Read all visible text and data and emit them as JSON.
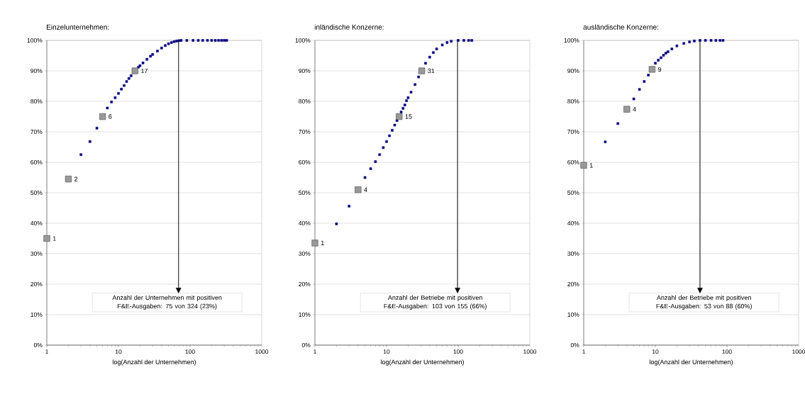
{
  "chart_data": [
    {
      "type": "scatter",
      "title": "Einzelunternehmen:",
      "xlabel": "log(Anzahl der Unternehmen)",
      "log": "x",
      "grid": "y",
      "marker": "square",
      "xlim": [
        1,
        1000
      ],
      "ylim": [
        0,
        100
      ],
      "xticks": [
        1,
        10,
        100,
        1000
      ],
      "yticks": [
        {
          "value": 0,
          "label": "0%"
        },
        {
          "value": 10,
          "label": "10%"
        },
        {
          "value": 20,
          "label": "20%"
        },
        {
          "value": 30,
          "label": "30%"
        },
        {
          "value": 40,
          "label": "40%"
        },
        {
          "value": 50,
          "label": "50%"
        },
        {
          "value": 60,
          "label": "60%"
        },
        {
          "value": 70,
          "label": "70%"
        },
        {
          "value": 80,
          "label": "80%"
        },
        {
          "value": 90,
          "label": "90%"
        },
        {
          "value": 100,
          "label": "100%"
        }
      ],
      "series": [
        {
          "color": "#000080",
          "x": [
            3,
            4,
            5,
            7,
            8,
            9,
            10,
            11,
            12,
            13,
            14,
            15,
            16,
            18,
            19,
            20,
            22,
            25,
            28,
            30,
            35,
            40,
            45,
            50,
            55,
            60,
            65,
            70,
            75,
            90,
            110,
            130,
            150,
            175,
            200,
            225,
            250,
            275,
            300,
            324
          ],
          "values": [
            62.5,
            66.8,
            71.2,
            77.8,
            79.8,
            81.2,
            82.6,
            84,
            85.2,
            86.5,
            87.5,
            88.4,
            null,
            null,
            91.2,
            91.7,
            92.6,
            93.8,
            94.8,
            95.4,
            96.5,
            97.5,
            98.3,
            98.9,
            99.3,
            99.6,
            99.8,
            99.9,
            100,
            100,
            100,
            100,
            100,
            100,
            100,
            100,
            100,
            100,
            100,
            100
          ]
        },
        {
          "color": "#999999",
          "x": [
            1,
            2,
            6,
            17
          ],
          "values": [
            35,
            54.5,
            75,
            90
          ]
        }
      ],
      "ref_lines": [
        {
          "axis": "x",
          "value": 69
        }
      ],
      "annotations": [
        "Anzahl der Unternehmen mit positiven F&E-Ausgaben: 75 von 324 (23%)",
        {
          "text": "1",
          "x": 1,
          "y": 35
        },
        {
          "text": "2",
          "x": 2,
          "y": 54.5
        },
        {
          "text": "6",
          "x": 6,
          "y": 75
        },
        {
          "text": "17",
          "x": 17,
          "y": 90
        }
      ]
    },
    {
      "type": "scatter",
      "title": "inländische Konzerne:",
      "xlabel": "log(Anzahl der Unternehmen)",
      "log": "x",
      "grid": "y",
      "marker": "square",
      "xlim": [
        1,
        1000
      ],
      "ylim": [
        0,
        100
      ],
      "xticks": [
        1,
        10,
        100,
        1000
      ],
      "yticks": [
        {
          "value": 0,
          "label": "0%"
        },
        {
          "value": 10,
          "label": "10%"
        },
        {
          "value": 20,
          "label": "20%"
        },
        {
          "value": 30,
          "label": "30%"
        },
        {
          "value": 40,
          "label": "40%"
        },
        {
          "value": 50,
          "label": "50%"
        },
        {
          "value": 60,
          "label": "60%"
        },
        {
          "value": 70,
          "label": "70%"
        },
        {
          "value": 80,
          "label": "80%"
        },
        {
          "value": 90,
          "label": "90%"
        },
        {
          "value": 100,
          "label": "100%"
        }
      ],
      "series": [
        {
          "color": "#000080",
          "x": [
            2,
            3,
            5,
            6,
            7,
            8,
            9,
            10,
            11,
            12,
            13,
            14,
            16,
            17,
            18,
            19,
            20,
            22,
            25,
            28,
            35,
            40,
            45,
            50,
            60,
            70,
            80,
            100,
            120,
            140,
            155
          ],
          "values": [
            39.8,
            45.6,
            55,
            57.9,
            60.2,
            62.5,
            64.8,
            66.8,
            68.7,
            70.5,
            72.2,
            73.7,
            76.5,
            77.7,
            78.8,
            80.2,
            81.2,
            83,
            85.5,
            88,
            92.5,
            94.5,
            96,
            97.2,
            98.5,
            99.3,
            99.7,
            100,
            100,
            100,
            100
          ]
        },
        {
          "color": "#999999",
          "x": [
            1,
            4,
            15,
            31
          ],
          "values": [
            33.5,
            51,
            75,
            90
          ]
        }
      ],
      "ref_lines": [
        {
          "axis": "x",
          "value": 98
        }
      ],
      "annotations": [
        "Anzahl der Betriebe mit positiven F&E-Ausgaben: 103 von 155 (66%)",
        {
          "text": "1",
          "x": 1,
          "y": 33.5
        },
        {
          "text": "4",
          "x": 4,
          "y": 51
        },
        {
          "text": "15",
          "x": 15,
          "y": 75
        },
        {
          "text": "31",
          "x": 31,
          "y": 90
        }
      ]
    },
    {
      "type": "scatter",
      "title": "ausländische Konzerne:",
      "xlabel": "log(Anzahl der Unternehmen)",
      "log": "x",
      "grid": "y",
      "marker": "square",
      "xlim": [
        1,
        1000
      ],
      "ylim": [
        0,
        100
      ],
      "xticks": [
        1,
        10,
        100,
        1000
      ],
      "yticks": [
        {
          "value": 0,
          "label": "0%"
        },
        {
          "value": 10,
          "label": "10%"
        },
        {
          "value": 20,
          "label": "20%"
        },
        {
          "value": 30,
          "label": "30%"
        },
        {
          "value": 40,
          "label": "40%"
        },
        {
          "value": 50,
          "label": "50%"
        },
        {
          "value": 60,
          "label": "60%"
        },
        {
          "value": 70,
          "label": "70%"
        },
        {
          "value": 80,
          "label": "80%"
        },
        {
          "value": 90,
          "label": "90%"
        },
        {
          "value": 100,
          "label": "100%"
        }
      ],
      "series": [
        {
          "color": "#000080",
          "x": [
            2,
            3,
            5,
            6,
            7,
            8,
            10,
            11,
            12,
            13,
            14,
            15,
            17,
            20,
            25,
            30,
            35,
            42,
            50,
            60,
            70,
            80,
            88
          ],
          "values": [
            66.7,
            72.7,
            80.8,
            83.9,
            86.5,
            88.6,
            92.5,
            93.5,
            94.3,
            95.1,
            95.8,
            96.3,
            97.2,
            98.2,
            99,
            99.5,
            99.8,
            100,
            100,
            100,
            100,
            100,
            100
          ]
        },
        {
          "color": "#999999",
          "x": [
            1,
            4,
            9
          ],
          "values": [
            59,
            77.4,
            90.5
          ]
        }
      ],
      "ref_lines": [
        {
          "axis": "x",
          "value": 42
        }
      ],
      "annotations": [
        "Anzahl der Betriebe mit positiven F&E-Ausgaben: 53 von 88 (60%)",
        {
          "text": "1",
          "x": 1,
          "y": 59
        },
        {
          "text": "4",
          "x": 4,
          "y": 77.4
        },
        {
          "text": "9",
          "x": 9,
          "y": 90.5
        }
      ]
    }
  ]
}
